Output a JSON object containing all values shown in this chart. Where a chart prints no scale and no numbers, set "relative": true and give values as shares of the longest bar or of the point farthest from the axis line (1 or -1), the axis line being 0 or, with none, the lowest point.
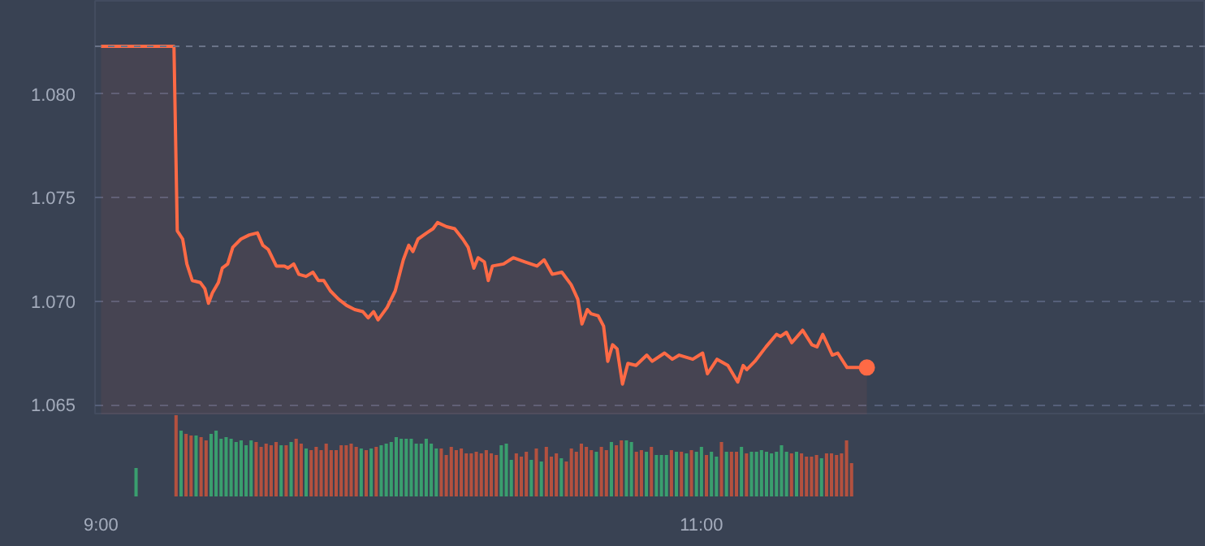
{
  "chart_data": [
    {
      "type": "area",
      "xlim": [
        8.98,
        12.68
      ],
      "ylim": [
        1.0645,
        1.0845
      ],
      "yticks": [
        1.065,
        {
          "value": 1.07,
          "label": "1.070"
        },
        1.075,
        {
          "value": 1.08,
          "label": "1.080"
        }
      ],
      "tick_labels": "y",
      "grid": "y",
      "ref_lines": [
        {
          "axis": "y",
          "value": 1.0823,
          "label": null,
          "line_style": "dashed",
          "color": "#6a7388"
        }
      ],
      "series": [
        {
          "type": "area",
          "color": "#ff6a45",
          "x": [
            9.0,
            9.243,
            9.254,
            9.272,
            9.286,
            9.304,
            9.331,
            9.346,
            9.358,
            9.371,
            9.391,
            9.404,
            9.422,
            9.439,
            9.466,
            9.494,
            9.521,
            9.539,
            9.557,
            9.584,
            9.611,
            9.623,
            9.642,
            9.659,
            9.683,
            9.706,
            9.724,
            9.742,
            9.764,
            9.791,
            9.818,
            9.845,
            9.872,
            9.89,
            9.908,
            9.923,
            9.953,
            9.98,
            10.007,
            10.025,
            10.039,
            10.056,
            10.085,
            10.106,
            10.121,
            10.151,
            10.178,
            10.205,
            10.223,
            10.242,
            10.256,
            10.277,
            10.29,
            10.304,
            10.341,
            10.373,
            10.412,
            10.452,
            10.476,
            10.503,
            10.535,
            10.566,
            10.588,
            10.602,
            10.62,
            10.632,
            10.656,
            10.674,
            10.688,
            10.704,
            10.719,
            10.737,
            10.755,
            10.782,
            10.818,
            10.836,
            10.877,
            10.903,
            10.926,
            10.971,
            11.004,
            11.02,
            11.052,
            11.088,
            11.121,
            11.139,
            11.151,
            11.178,
            11.215,
            11.25,
            11.263,
            11.283,
            11.301,
            11.337,
            11.368,
            11.385,
            11.404,
            11.436,
            11.454,
            11.485,
            11.551
          ],
          "values": [
            1.0823,
            1.0823,
            1.0734,
            1.073,
            1.0718,
            1.071,
            1.0709,
            1.0706,
            1.0699,
            1.0704,
            1.0709,
            1.0716,
            1.0718,
            1.0726,
            1.073,
            1.0732,
            1.0733,
            1.0727,
            1.0725,
            1.0717,
            1.0717,
            1.0716,
            1.0718,
            1.0713,
            1.0712,
            1.0714,
            1.071,
            1.071,
            1.0705,
            1.0701,
            1.0698,
            1.0696,
            1.0695,
            1.0692,
            1.0695,
            1.0691,
            1.0697,
            1.0705,
            1.072,
            1.0727,
            1.0724,
            1.073,
            1.0733,
            1.0735,
            1.0738,
            1.0736,
            1.0735,
            1.073,
            1.0726,
            1.0716,
            1.0721,
            1.0719,
            1.071,
            1.0717,
            1.0718,
            1.0721,
            1.0719,
            1.0717,
            1.072,
            1.0713,
            1.0714,
            1.0708,
            1.0701,
            1.0689,
            1.0696,
            1.0694,
            1.0693,
            1.0688,
            1.0671,
            1.0679,
            1.0677,
            1.066,
            1.067,
            1.0669,
            1.0674,
            1.0671,
            1.0675,
            1.0672,
            1.0674,
            1.0672,
            1.0675,
            1.0665,
            1.0672,
            1.0669,
            1.0661,
            1.0669,
            1.0667,
            1.0671,
            1.0678,
            1.0684,
            1.0683,
            1.0685,
            1.068,
            1.0686,
            1.0679,
            1.0678,
            1.0684,
            1.0674,
            1.0675,
            1.0668,
            1.0668
          ]
        },
        {
          "type": "scatter",
          "color": "#ff6a45",
          "marker": "circle",
          "x": [
            11.551
          ],
          "values": [
            1.0668
          ]
        }
      ]
    },
    {
      "type": "bar",
      "relative": true,
      "xlim": [
        8.98,
        12.68
      ],
      "xticks": [
        {
          "value": 9,
          "label": "9:00"
        },
        {
          "value": 11,
          "label": "11:00"
        }
      ],
      "tick_labels": "x",
      "x": [
        9.1167,
        9.25,
        9.2667,
        9.2833,
        9.3,
        9.3167,
        9.3333,
        9.35,
        9.3667,
        9.3833,
        9.4,
        9.4167,
        9.4333,
        9.45,
        9.4667,
        9.4833,
        9.5,
        9.5167,
        9.5333,
        9.55,
        9.5667,
        9.5833,
        9.6,
        9.6167,
        9.6333,
        9.65,
        9.6667,
        9.6833,
        9.7,
        9.7167,
        9.7333,
        9.75,
        9.7667,
        9.7833,
        9.8,
        9.8167,
        9.8333,
        9.85,
        9.8667,
        9.8833,
        9.9,
        9.9167,
        9.9333,
        9.95,
        9.9667,
        9.9833,
        10.0,
        10.0167,
        10.0333,
        10.05,
        10.0667,
        10.0833,
        10.1,
        10.1167,
        10.1333,
        10.15,
        10.1667,
        10.1833,
        10.2,
        10.2167,
        10.2333,
        10.25,
        10.2667,
        10.2833,
        10.3,
        10.3167,
        10.3333,
        10.35,
        10.3667,
        10.3833,
        10.4,
        10.4167,
        10.4333,
        10.45,
        10.4667,
        10.4833,
        10.5,
        10.5167,
        10.5333,
        10.55,
        10.5667,
        10.5833,
        10.6,
        10.6167,
        10.6333,
        10.65,
        10.6667,
        10.6833,
        10.7,
        10.7167,
        10.7333,
        10.75,
        10.7667,
        10.7833,
        10.8,
        10.8167,
        10.8333,
        10.85,
        10.8667,
        10.8833,
        10.9,
        10.9167,
        10.9333,
        10.95,
        10.9667,
        10.9833,
        11.0,
        11.0167,
        11.0333,
        11.05,
        11.0667,
        11.0833,
        11.1,
        11.1167,
        11.1333,
        11.15,
        11.1667,
        11.1833,
        11.2,
        11.2167,
        11.2333,
        11.25,
        11.2667,
        11.2833,
        11.3,
        11.3167,
        11.3333,
        11.35,
        11.3667,
        11.3833,
        11.4,
        11.4167,
        11.4333,
        11.45,
        11.4667,
        11.4833,
        11.5
      ],
      "values": [
        0.35,
        1.0,
        0.81,
        0.77,
        0.75,
        0.75,
        0.73,
        0.69,
        0.77,
        0.81,
        0.71,
        0.73,
        0.71,
        0.67,
        0.69,
        0.63,
        0.69,
        0.67,
        0.61,
        0.65,
        0.63,
        0.67,
        0.63,
        0.63,
        0.67,
        0.71,
        0.65,
        0.59,
        0.57,
        0.61,
        0.57,
        0.65,
        0.57,
        0.57,
        0.63,
        0.63,
        0.65,
        0.61,
        0.59,
        0.57,
        0.59,
        0.61,
        0.63,
        0.65,
        0.67,
        0.73,
        0.71,
        0.71,
        0.71,
        0.65,
        0.65,
        0.71,
        0.65,
        0.59,
        0.59,
        0.51,
        0.61,
        0.57,
        0.59,
        0.53,
        0.53,
        0.55,
        0.53,
        0.57,
        0.53,
        0.51,
        0.63,
        0.65,
        0.45,
        0.53,
        0.49,
        0.55,
        0.45,
        0.59,
        0.43,
        0.61,
        0.49,
        0.53,
        0.47,
        0.43,
        0.59,
        0.55,
        0.65,
        0.61,
        0.57,
        0.55,
        0.61,
        0.57,
        0.67,
        0.63,
        0.69,
        0.69,
        0.67,
        0.55,
        0.57,
        0.55,
        0.61,
        0.51,
        0.51,
        0.51,
        0.57,
        0.55,
        0.55,
        0.53,
        0.57,
        0.55,
        0.61,
        0.51,
        0.55,
        0.49,
        0.67,
        0.55,
        0.55,
        0.55,
        0.61,
        0.53,
        0.55,
        0.55,
        0.57,
        0.55,
        0.53,
        0.55,
        0.63,
        0.55,
        0.53,
        0.55,
        0.53,
        0.49,
        0.49,
        0.51,
        0.47,
        0.53,
        0.53,
        0.51,
        0.53,
        0.69,
        0.41
      ],
      "colors": [
        "#3a9e6e",
        "#b4513f",
        "#3a9e6e",
        "#b4513f",
        "#b4513f",
        "#3a9e6e",
        "#b4513f",
        "#b4513f",
        "#3a9e6e",
        "#3a9e6e",
        "#3a9e6e",
        "#3a9e6e",
        "#3a9e6e",
        "#3a9e6e",
        "#3a9e6e",
        "#3a9e6e",
        "#3a9e6e",
        "#b4513f",
        "#b4513f",
        "#b4513f",
        "#b4513f",
        "#b4513f",
        "#3a9e6e",
        "#b4513f",
        "#3a9e6e",
        "#b4513f",
        "#b4513f",
        "#3a9e6e",
        "#b4513f",
        "#b4513f",
        "#b4513f",
        "#b4513f",
        "#b4513f",
        "#b4513f",
        "#b4513f",
        "#b4513f",
        "#b4513f",
        "#b4513f",
        "#3a9e6e",
        "#b4513f",
        "#3a9e6e",
        "#b4513f",
        "#3a9e6e",
        "#3a9e6e",
        "#3a9e6e",
        "#3a9e6e",
        "#3a9e6e",
        "#3a9e6e",
        "#3a9e6e",
        "#3a9e6e",
        "#3a9e6e",
        "#3a9e6e",
        "#3a9e6e",
        "#3a9e6e",
        "#b4513f",
        "#b4513f",
        "#b4513f",
        "#b4513f",
        "#b4513f",
        "#b4513f",
        "#b4513f",
        "#b4513f",
        "#b4513f",
        "#b4513f",
        "#b4513f",
        "#b4513f",
        "#3a9e6e",
        "#3a9e6e",
        "#3a9e6e",
        "#b4513f",
        "#b4513f",
        "#b4513f",
        "#3a9e6e",
        "#b4513f",
        "#3a9e6e",
        "#b4513f",
        "#b4513f",
        "#b4513f",
        "#3a9e6e",
        "#b4513f",
        "#b4513f",
        "#b4513f",
        "#b4513f",
        "#b4513f",
        "#b4513f",
        "#3a9e6e",
        "#b4513f",
        "#b4513f",
        "#3a9e6e",
        "#b4513f",
        "#b4513f",
        "#3a9e6e",
        "#3a9e6e",
        "#b4513f",
        "#b4513f",
        "#3a9e6e",
        "#b4513f",
        "#3a9e6e",
        "#3a9e6e",
        "#3a9e6e",
        "#b4513f",
        "#3a9e6e",
        "#b4513f",
        "#3a9e6e",
        "#b4513f",
        "#3a9e6e",
        "#3a9e6e",
        "#b4513f",
        "#3a9e6e",
        "#3a9e6e",
        "#b4513f",
        "#3a9e6e",
        "#b4513f",
        "#b4513f",
        "#3a9e6e",
        "#b4513f",
        "#3a9e6e",
        "#3a9e6e",
        "#3a9e6e",
        "#3a9e6e",
        "#3a9e6e",
        "#3a9e6e",
        "#3a9e6e",
        "#3a9e6e",
        "#b4513f",
        "#3a9e6e",
        "#b4513f",
        "#b4513f",
        "#b4513f",
        "#b4513f",
        "#3a9e6e",
        "#b4513f",
        "#b4513f",
        "#b4513f",
        "#b4513f",
        "#b4513f",
        "#b4513f"
      ]
    }
  ]
}
